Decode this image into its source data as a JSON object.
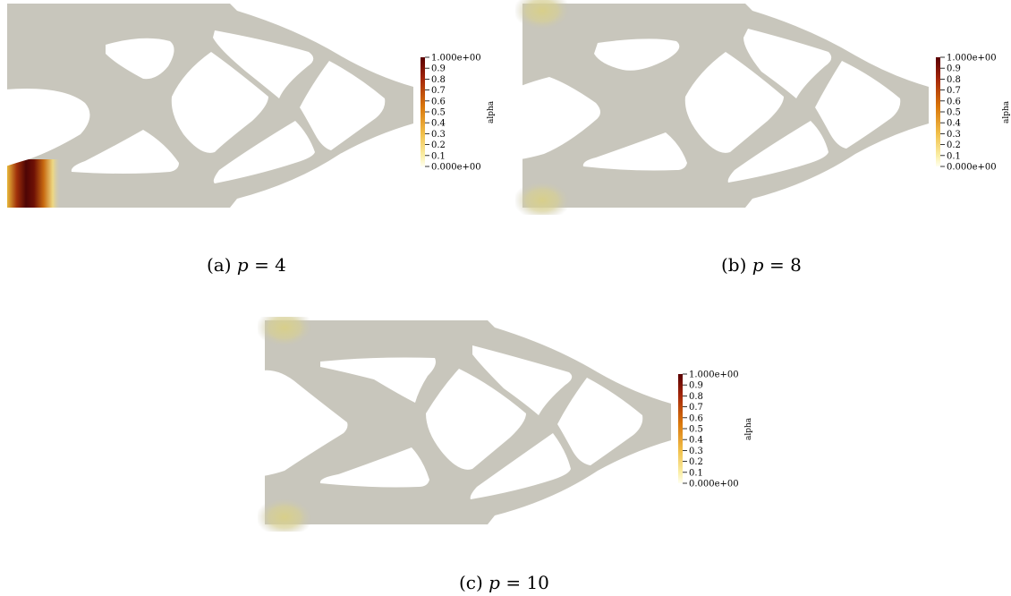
{
  "colorbar": {
    "title": "alpha",
    "ticks": [
      "1.000e+00",
      "0.9",
      "0.8",
      "0.7",
      "0.6",
      "0.5",
      "0.4",
      "0.3",
      "0.2",
      "0.1",
      "0.000e+00"
    ],
    "colors": {
      "max": "#5a0000",
      "mid": "#d9760b",
      "low": "#f4e07a",
      "min": "#fffff0"
    }
  },
  "shape_color": "#c8c6bc",
  "panels": [
    {
      "label": "(a)",
      "p_symbol": "p",
      "eq": "= 4",
      "alpha_high": "left edge, near bottom hole"
    },
    {
      "label": "(b)",
      "p_symbol": "p",
      "eq": "= 8"
    },
    {
      "label": "(c)",
      "p_symbol": "p",
      "eq": "= 10"
    }
  ]
}
